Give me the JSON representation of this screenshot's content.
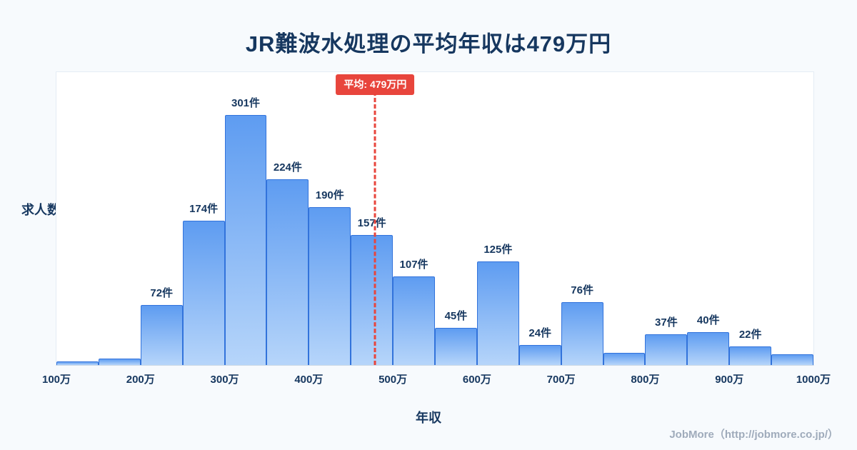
{
  "title": "JR難波水処理の平均年収は479万円",
  "footer": "JobMore（http://jobmore.co.jp/）",
  "colors": {
    "background": "#f7fafd",
    "plot_background": "#ffffff",
    "bar_fill_top": "#5e9cf1",
    "bar_fill_bottom": "#b6d5fa",
    "bar_border": "#3273db",
    "text": "#16375f",
    "average_accent": "#e8453c",
    "footer_text": "#9fabbb"
  },
  "chart_data": {
    "type": "bar",
    "title": "JR難波水処理の平均年収は479万円",
    "xlabel": "年収",
    "ylabel": "求人数",
    "x_range": [
      100,
      1000
    ],
    "ylim": [
      0,
      353
    ],
    "grid": false,
    "legend": false,
    "average": 479,
    "average_label": "平均: 479万円",
    "x_tick_values": [
      100,
      200,
      300,
      400,
      500,
      600,
      700,
      800,
      900,
      1000
    ],
    "x_ticks": [
      "100万",
      "200万",
      "300万",
      "400万",
      "500万",
      "600万",
      "700万",
      "800万",
      "900万",
      "1000万"
    ],
    "bins": [
      {
        "range": [
          100,
          150
        ],
        "value": 4,
        "label": ""
      },
      {
        "range": [
          150,
          200
        ],
        "value": 8,
        "label": ""
      },
      {
        "range": [
          200,
          250
        ],
        "value": 72,
        "label": "72件"
      },
      {
        "range": [
          250,
          300
        ],
        "value": 174,
        "label": "174件"
      },
      {
        "range": [
          300,
          350
        ],
        "value": 301,
        "label": "301件"
      },
      {
        "range": [
          350,
          400
        ],
        "value": 224,
        "label": "224件"
      },
      {
        "range": [
          400,
          450
        ],
        "value": 190,
        "label": "190件"
      },
      {
        "range": [
          450,
          500
        ],
        "value": 157,
        "label": "157件"
      },
      {
        "range": [
          500,
          550
        ],
        "value": 107,
        "label": "107件"
      },
      {
        "range": [
          550,
          600
        ],
        "value": 45,
        "label": "45件"
      },
      {
        "range": [
          600,
          650
        ],
        "value": 125,
        "label": "125件"
      },
      {
        "range": [
          650,
          700
        ],
        "value": 24,
        "label": "24件"
      },
      {
        "range": [
          700,
          750
        ],
        "value": 76,
        "label": "76件"
      },
      {
        "range": [
          750,
          800
        ],
        "value": 15,
        "label": ""
      },
      {
        "range": [
          800,
          850
        ],
        "value": 37,
        "label": "37件"
      },
      {
        "range": [
          850,
          900
        ],
        "value": 40,
        "label": "40件"
      },
      {
        "range": [
          900,
          950
        ],
        "value": 22,
        "label": "22件"
      },
      {
        "range": [
          950,
          1000
        ],
        "value": 13,
        "label": ""
      }
    ]
  }
}
